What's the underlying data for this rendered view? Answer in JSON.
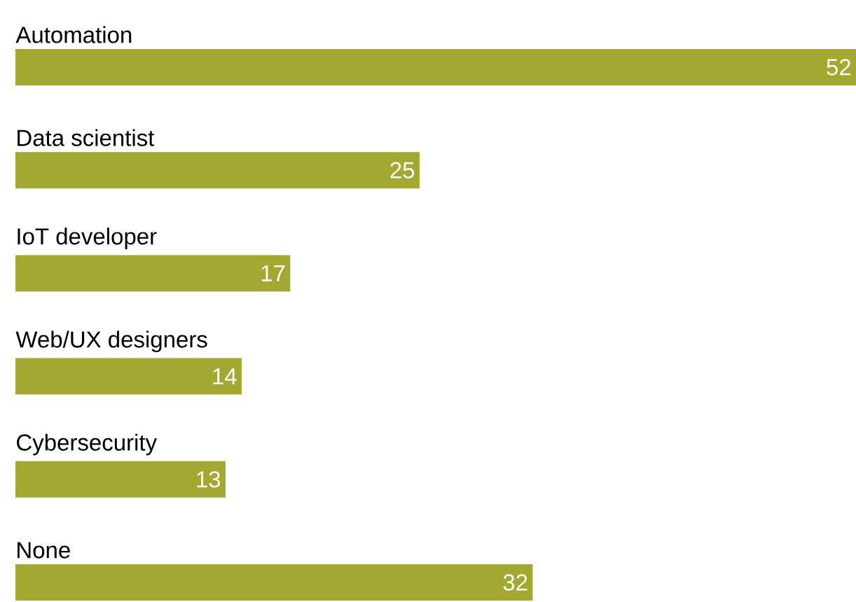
{
  "chart_data": {
    "type": "bar",
    "orientation": "horizontal",
    "categories": [
      "Automation",
      "Data scientist",
      "IoT developer",
      "Web/UX designers",
      "Cybersecurity",
      "None"
    ],
    "values": [
      52,
      25,
      17,
      14,
      13,
      32
    ],
    "color": "#a2a830",
    "data_labels": true
  }
}
